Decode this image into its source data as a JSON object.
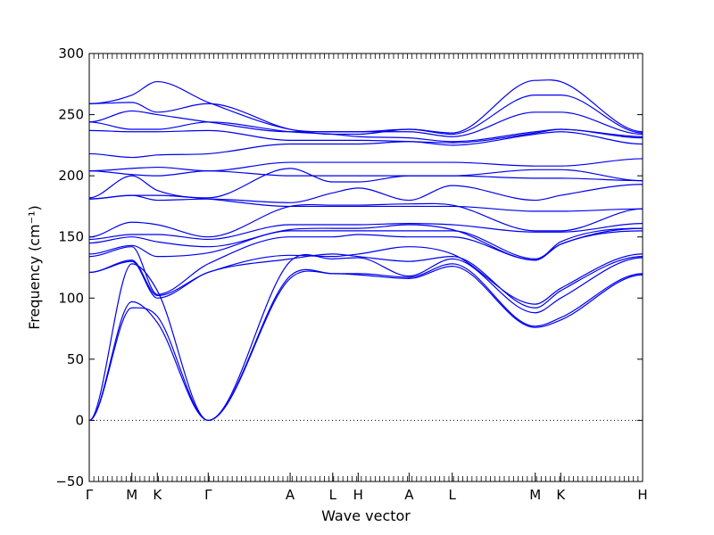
{
  "chart_data": {
    "type": "line",
    "xlabel": "Wave vector",
    "ylabel": "Frequency (cm⁻¹)",
    "ylim": [
      -50,
      300
    ],
    "yticks": [
      -50,
      0,
      50,
      100,
      150,
      200,
      250,
      300
    ],
    "xticks": [
      {
        "label": "Γ",
        "x": 0.0
      },
      {
        "label": "M",
        "x": 0.077
      },
      {
        "label": "K",
        "x": 0.123
      },
      {
        "label": "Γ",
        "x": 0.215
      },
      {
        "label": "A",
        "x": 0.363
      },
      {
        "label": "L",
        "x": 0.44
      },
      {
        "label": "H",
        "x": 0.486
      },
      {
        "label": "A",
        "x": 0.578
      },
      {
        "label": "L",
        "x": 0.656
      },
      {
        "label": "M",
        "x": 0.806
      },
      {
        "label": "K",
        "x": 0.852
      },
      {
        "label": "H",
        "x": 1.0
      }
    ],
    "zero_line": true,
    "line_color": "#0000ee",
    "band_values": [
      [
        0,
        92,
        85,
        0,
        116,
        120,
        119,
        116,
        126,
        76,
        82,
        119
      ],
      [
        0,
        97,
        80,
        0,
        118,
        120,
        120,
        117,
        128,
        77,
        84,
        120
      ],
      [
        0,
        128,
        106,
        0,
        130,
        132,
        133,
        118,
        132,
        88,
        100,
        133
      ],
      [
        121,
        130,
        100,
        121,
        132,
        136,
        134,
        130,
        134,
        92,
        106,
        134
      ],
      [
        121,
        131,
        102,
        121,
        135,
        134,
        136,
        142,
        136,
        95,
        108,
        136
      ],
      [
        134,
        142,
        103,
        128,
        150,
        150,
        152,
        150,
        150,
        131,
        144,
        155
      ],
      [
        136,
        143,
        134,
        137,
        155,
        155,
        155,
        155,
        155,
        132,
        144,
        157
      ],
      [
        145,
        150,
        146,
        142,
        156,
        157,
        157,
        160,
        156,
        131,
        146,
        157
      ],
      [
        148,
        152,
        152,
        148,
        160,
        160,
        160,
        161,
        160,
        154,
        154,
        161
      ],
      [
        150,
        162,
        160,
        150,
        175,
        176,
        176,
        177,
        176,
        155,
        155,
        173
      ],
      [
        181,
        184,
        184,
        181,
        175,
        175,
        175,
        175,
        175,
        171,
        171,
        173
      ],
      [
        181,
        184,
        180,
        181,
        178,
        186,
        190,
        180,
        192,
        180,
        184,
        193
      ],
      [
        182,
        200,
        188,
        182,
        206,
        195,
        195,
        200,
        200,
        198,
        198,
        196
      ],
      [
        204,
        201,
        200,
        204,
        200,
        200,
        200,
        200,
        200,
        205,
        205,
        196
      ],
      [
        204,
        206,
        207,
        204,
        211,
        211,
        211,
        211,
        211,
        208,
        208,
        214
      ],
      [
        218,
        215,
        217,
        218,
        226,
        226,
        226,
        228,
        225,
        234,
        236,
        226
      ],
      [
        237,
        236,
        236,
        237,
        229,
        229,
        229,
        228,
        227,
        235,
        238,
        231
      ],
      [
        244,
        238,
        238,
        244,
        236,
        234,
        232,
        231,
        228,
        236,
        238,
        232
      ],
      [
        244,
        253,
        250,
        244,
        236,
        236,
        236,
        236,
        232,
        252,
        252,
        234
      ],
      [
        259,
        260,
        252,
        259,
        238,
        234,
        234,
        238,
        234,
        266,
        266,
        235
      ],
      [
        259,
        266,
        277,
        260,
        238,
        236,
        236,
        238,
        235,
        278,
        277,
        236
      ]
    ]
  }
}
